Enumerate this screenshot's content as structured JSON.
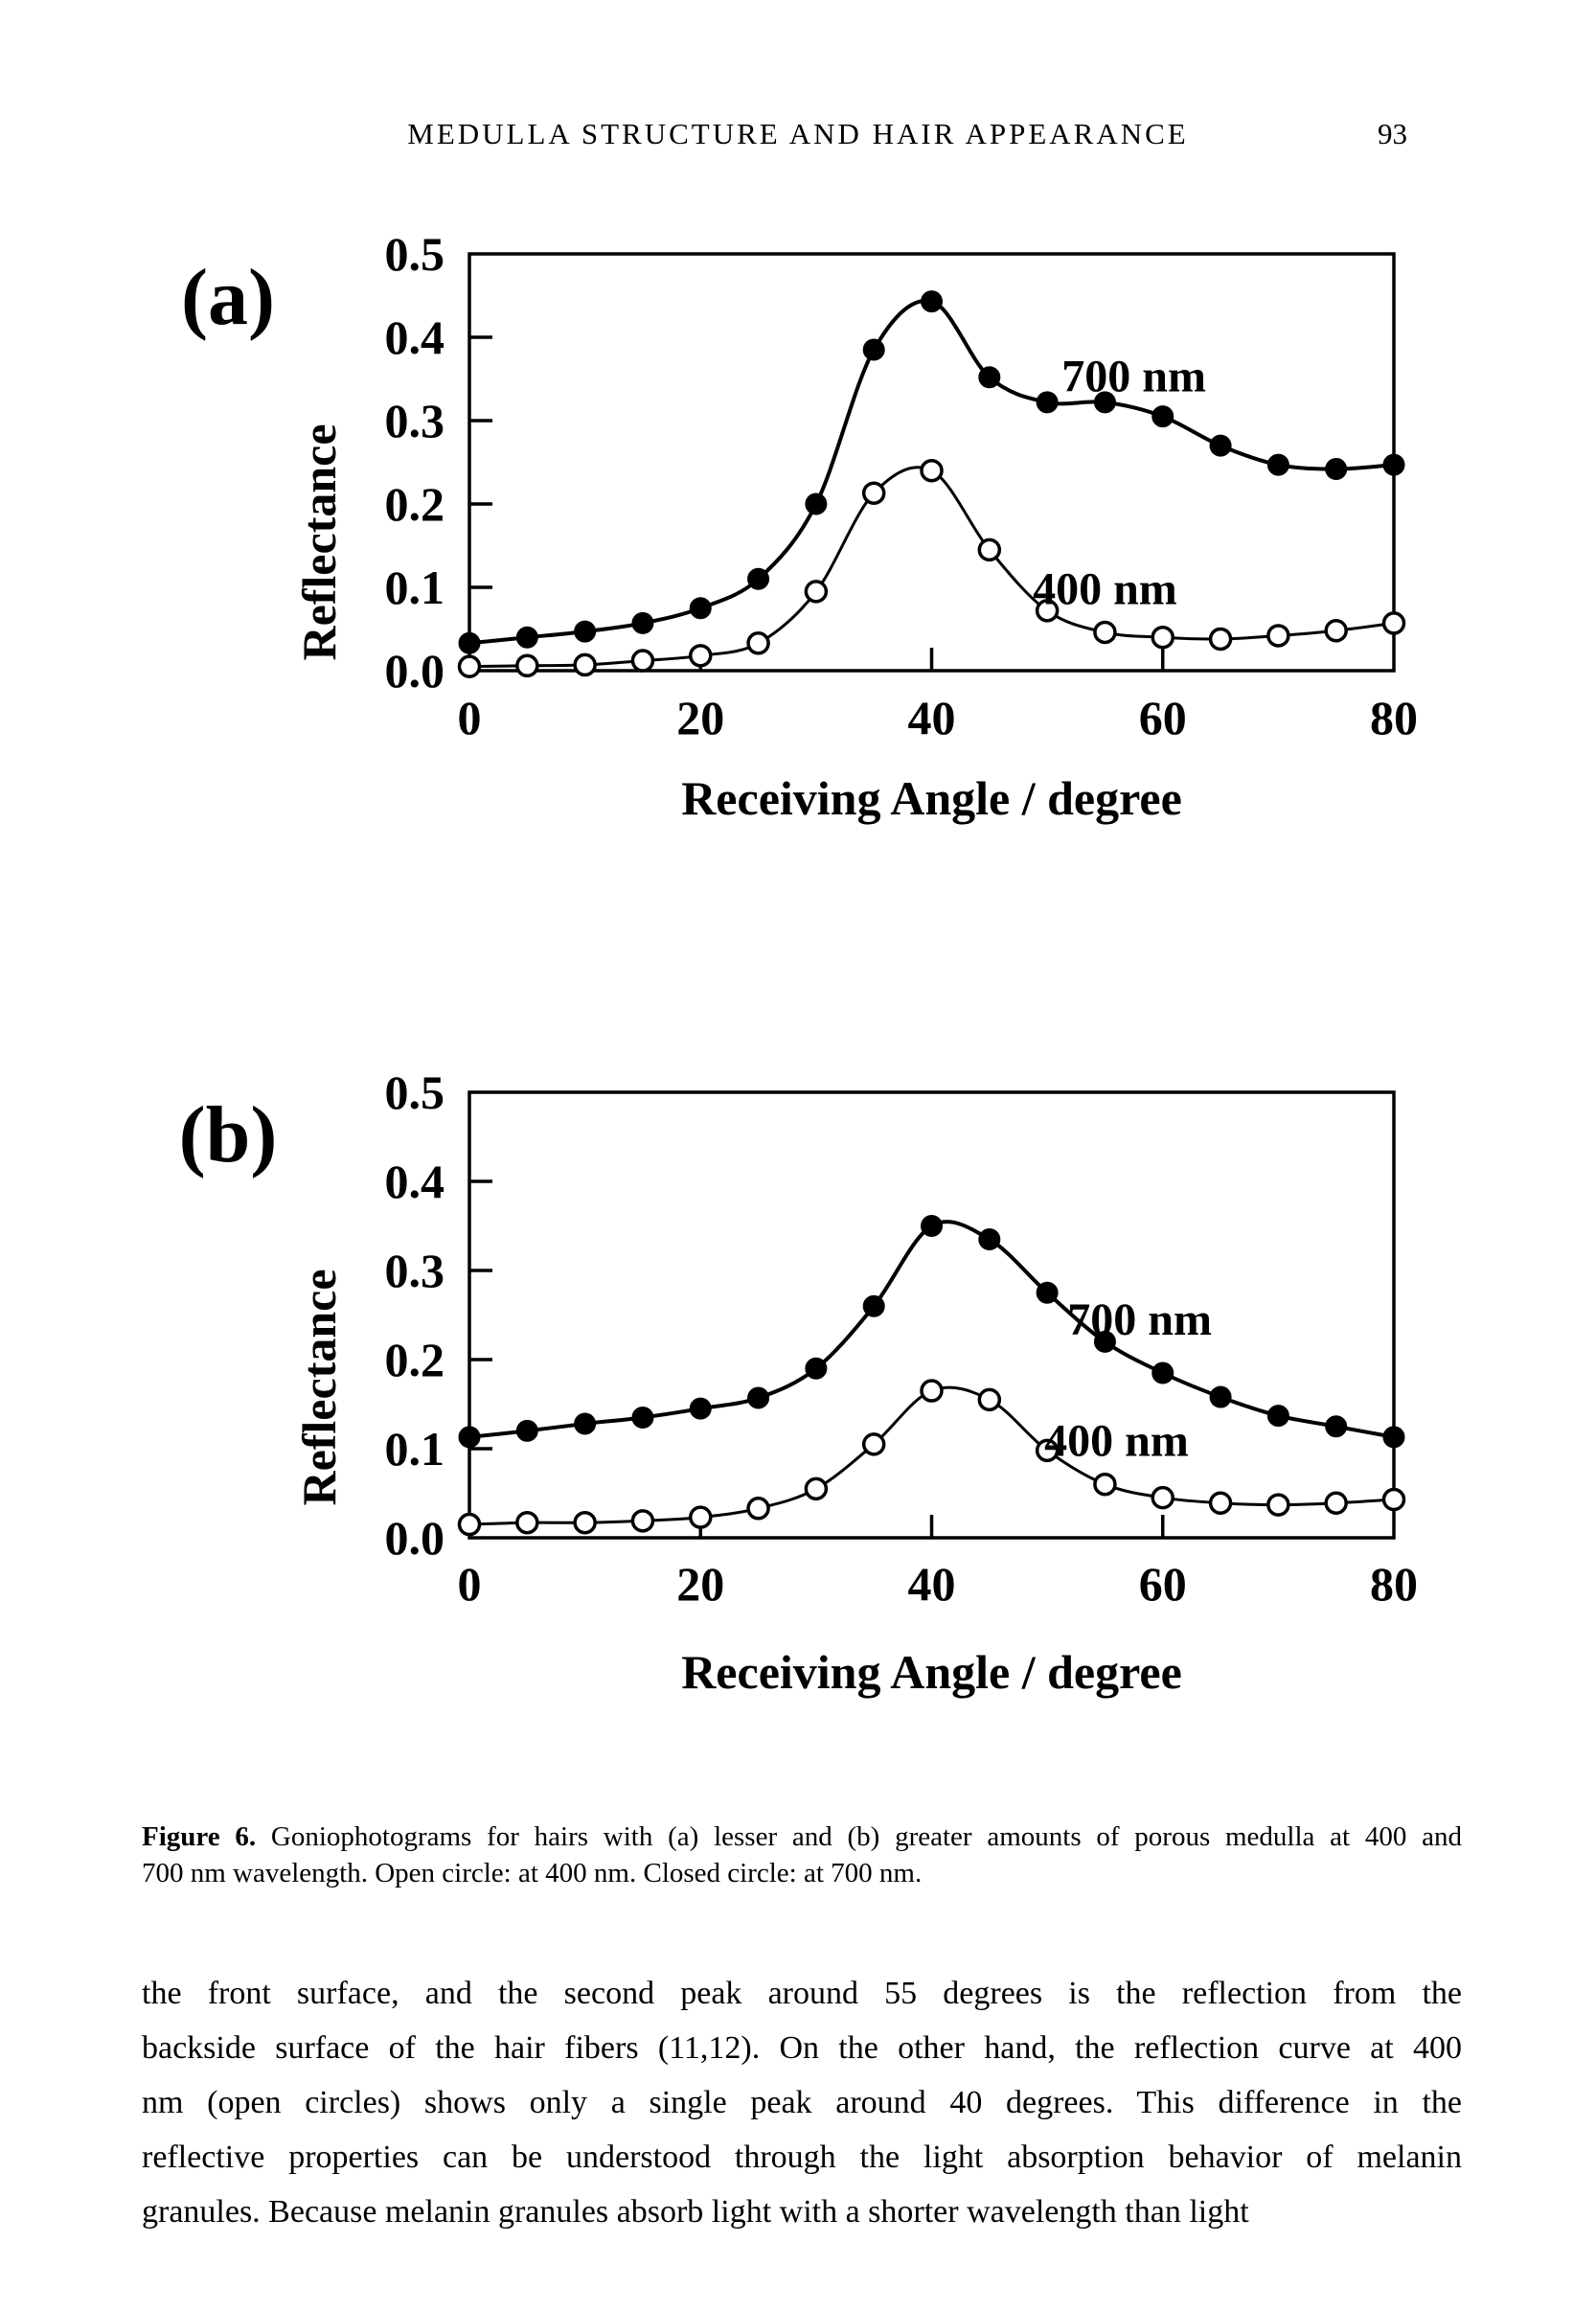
{
  "header": {
    "running_title": "MEDULLA STRUCTURE AND HAIR APPEARANCE",
    "page_number": "93"
  },
  "chart_data": [
    {
      "type": "line",
      "panel": "(a)",
      "xlabel": "Receiving Angle / degree",
      "ylabel": "Reflectance",
      "xlim": [
        0,
        80
      ],
      "ylim": [
        0.0,
        0.5
      ],
      "x_ticks": [
        0,
        20,
        40,
        60,
        80
      ],
      "y_ticks": [
        0.0,
        0.1,
        0.2,
        0.3,
        0.4,
        0.5
      ],
      "grid": false,
      "legend": "in-plot text labels",
      "x": [
        0,
        5,
        10,
        15,
        20,
        25,
        30,
        35,
        40,
        45,
        50,
        55,
        60,
        65,
        70,
        75,
        80
      ],
      "series": [
        {
          "name": "700 nm",
          "marker": "closed-circle",
          "label_at": {
            "x": 57.5,
            "y": 0.335
          },
          "values": [
            0.033,
            0.04,
            0.047,
            0.057,
            0.075,
            0.11,
            0.2,
            0.385,
            0.443,
            0.352,
            0.322,
            0.322,
            0.305,
            0.27,
            0.247,
            0.242,
            0.247
          ]
        },
        {
          "name": "400 nm",
          "marker": "open-circle",
          "label_at": {
            "x": 55.0,
            "y": 0.08
          },
          "values": [
            0.005,
            0.006,
            0.007,
            0.012,
            0.018,
            0.033,
            0.095,
            0.213,
            0.24,
            0.145,
            0.072,
            0.046,
            0.04,
            0.038,
            0.042,
            0.048,
            0.057
          ]
        }
      ]
    },
    {
      "type": "line",
      "panel": "(b)",
      "xlabel": "Receiving Angle / degree",
      "ylabel": "Reflectance",
      "xlim": [
        0,
        80
      ],
      "ylim": [
        0.0,
        0.5
      ],
      "x_ticks": [
        0,
        20,
        40,
        60,
        80
      ],
      "y_ticks": [
        0.0,
        0.1,
        0.2,
        0.3,
        0.4,
        0.5
      ],
      "grid": false,
      "legend": "in-plot text labels",
      "x": [
        0,
        5,
        10,
        15,
        20,
        25,
        30,
        35,
        40,
        45,
        50,
        55,
        60,
        65,
        70,
        75,
        80
      ],
      "series": [
        {
          "name": "700 nm",
          "marker": "closed-circle",
          "label_at": {
            "x": 58.0,
            "y": 0.228
          },
          "values": [
            0.113,
            0.12,
            0.128,
            0.135,
            0.145,
            0.157,
            0.19,
            0.26,
            0.35,
            0.335,
            0.275,
            0.22,
            0.185,
            0.158,
            0.137,
            0.125,
            0.113
          ]
        },
        {
          "name": "400 nm",
          "marker": "open-circle",
          "label_at": {
            "x": 56.0,
            "y": 0.092
          },
          "values": [
            0.015,
            0.017,
            0.017,
            0.019,
            0.023,
            0.033,
            0.055,
            0.105,
            0.165,
            0.155,
            0.098,
            0.06,
            0.045,
            0.039,
            0.037,
            0.039,
            0.043
          ]
        }
      ]
    }
  ],
  "caption": {
    "label": "Figure 6.",
    "line1_rest": " Goniophotograms for hairs with (a) lesser and (b) greater amounts of porous medulla at 400 and",
    "line2": "700 nm wavelength. Open circle: at 400 nm. Closed circle: at 700 nm."
  },
  "body": {
    "lines": [
      "the front surface, and the second peak around 55 degrees is the reflection from the",
      "backside surface of the hair fibers (11,12). On the other hand, the reflection curve at 400",
      "nm (open circles) shows only a single peak around 40 degrees. This difference in the",
      "reflective properties can be understood through the light absorption behavior of melanin",
      "granules. Because melanin granules absorb light with a shorter wavelength than light"
    ]
  }
}
